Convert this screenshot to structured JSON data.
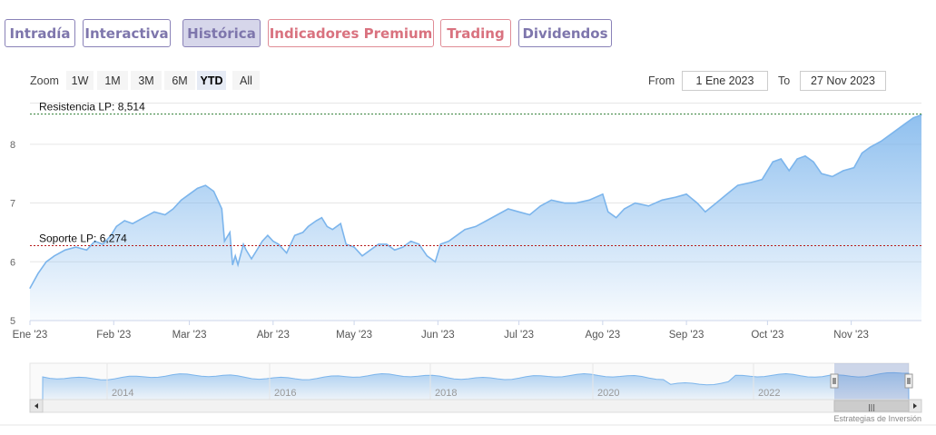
{
  "tabs": [
    {
      "label": "Intradía",
      "style": "purple"
    },
    {
      "label": "Interactiva",
      "style": "purple"
    },
    {
      "label": "Histórica",
      "style": "active"
    },
    {
      "label": "Indicadores Premium",
      "style": "red"
    },
    {
      "label": "Trading",
      "style": "red"
    },
    {
      "label": "Dividendos",
      "style": "purple"
    }
  ],
  "zoom": {
    "label": "Zoom",
    "buttons": [
      "1W",
      "1M",
      "3M",
      "6M",
      "YTD",
      "All"
    ],
    "selected": "YTD"
  },
  "range": {
    "from_label": "From",
    "from_value": "1 Ene 2023",
    "to_label": "To",
    "to_value": "27 Nov 2023"
  },
  "colors": {
    "line": "#7cb5ec",
    "resistance": "#2e7d32",
    "support": "#b71c1c",
    "tab_purple": "#7e76ac",
    "tab_red": "#d9727f"
  },
  "chart_data": {
    "type": "area",
    "title": "",
    "xlabel": "",
    "ylabel": "",
    "ylim": [
      5,
      8.6
    ],
    "xlim": [
      "2023-01-01",
      "2023-11-27"
    ],
    "yticks": [
      "5",
      "6",
      "7",
      "8"
    ],
    "grid": true,
    "legend": "none",
    "xticks": [
      {
        "date": "2023-01-01",
        "label": "Ene '23"
      },
      {
        "date": "2023-02-01",
        "label": "Feb '23"
      },
      {
        "date": "2023-03-01",
        "label": "Mar '23"
      },
      {
        "date": "2023-04-01",
        "label": "Abr '23"
      },
      {
        "date": "2023-05-01",
        "label": "May '23"
      },
      {
        "date": "2023-06-01",
        "label": "Jun '23"
      },
      {
        "date": "2023-07-01",
        "label": "Jul '23"
      },
      {
        "date": "2023-08-01",
        "label": "Ago '23"
      },
      {
        "date": "2023-09-01",
        "label": "Sep '23"
      },
      {
        "date": "2023-10-01",
        "label": "Oct '23"
      },
      {
        "date": "2023-11-01",
        "label": "Nov '23"
      }
    ],
    "plot_lines": [
      {
        "label": "Resistencia LP: 8,514",
        "value": 8.514,
        "style": "resistance"
      },
      {
        "label": "Soporte LP: 6,274",
        "value": 6.274,
        "style": "support"
      }
    ],
    "x": [
      "2023-01-01",
      "2023-01-04",
      "2023-01-07",
      "2023-01-10",
      "2023-01-14",
      "2023-01-18",
      "2023-01-22",
      "2023-01-25",
      "2023-01-28",
      "2023-01-31",
      "2023-02-02",
      "2023-02-05",
      "2023-02-08",
      "2023-02-12",
      "2023-02-16",
      "2023-02-20",
      "2023-02-23",
      "2023-02-26",
      "2023-03-01",
      "2023-03-04",
      "2023-03-07",
      "2023-03-10",
      "2023-03-13",
      "2023-03-14",
      "2023-03-16",
      "2023-03-17",
      "2023-03-18",
      "2023-03-19",
      "2023-03-21",
      "2023-03-22",
      "2023-03-24",
      "2023-03-26",
      "2023-03-28",
      "2023-03-30",
      "2023-04-01",
      "2023-04-03",
      "2023-04-06",
      "2023-04-09",
      "2023-04-12",
      "2023-04-14",
      "2023-04-17",
      "2023-04-19",
      "2023-04-21",
      "2023-04-23",
      "2023-04-26",
      "2023-04-28",
      "2023-05-01",
      "2023-05-04",
      "2023-05-07",
      "2023-05-10",
      "2023-05-13",
      "2023-05-16",
      "2023-05-19",
      "2023-05-22",
      "2023-05-25",
      "2023-05-28",
      "2023-05-31",
      "2023-06-02",
      "2023-06-05",
      "2023-06-08",
      "2023-06-11",
      "2023-06-15",
      "2023-06-19",
      "2023-06-23",
      "2023-06-27",
      "2023-07-01",
      "2023-07-05",
      "2023-07-09",
      "2023-07-13",
      "2023-07-18",
      "2023-07-22",
      "2023-07-27",
      "2023-08-01",
      "2023-08-03",
      "2023-08-06",
      "2023-08-09",
      "2023-08-13",
      "2023-08-18",
      "2023-08-23",
      "2023-08-28",
      "2023-09-01",
      "2023-09-05",
      "2023-09-08",
      "2023-09-12",
      "2023-09-16",
      "2023-09-20",
      "2023-09-25",
      "2023-09-29",
      "2023-10-03",
      "2023-10-06",
      "2023-10-09",
      "2023-10-12",
      "2023-10-15",
      "2023-10-18",
      "2023-10-21",
      "2023-10-25",
      "2023-10-29",
      "2023-11-02",
      "2023-11-05",
      "2023-11-08",
      "2023-11-12",
      "2023-11-15",
      "2023-11-18",
      "2023-11-21",
      "2023-11-24",
      "2023-11-27"
    ],
    "values": [
      5.55,
      5.8,
      6.0,
      6.1,
      6.2,
      6.25,
      6.2,
      6.35,
      6.3,
      6.45,
      6.6,
      6.7,
      6.65,
      6.75,
      6.85,
      6.8,
      6.9,
      7.05,
      7.15,
      7.25,
      7.3,
      7.2,
      6.9,
      6.35,
      6.5,
      5.95,
      6.1,
      5.95,
      6.3,
      6.2,
      6.05,
      6.2,
      6.35,
      6.45,
      6.35,
      6.3,
      6.15,
      6.45,
      6.5,
      6.6,
      6.7,
      6.75,
      6.6,
      6.55,
      6.65,
      6.3,
      6.25,
      6.1,
      6.2,
      6.3,
      6.3,
      6.2,
      6.25,
      6.35,
      6.3,
      6.1,
      6.0,
      6.3,
      6.35,
      6.45,
      6.55,
      6.6,
      6.7,
      6.8,
      6.9,
      6.85,
      6.8,
      6.95,
      7.05,
      7.0,
      7.0,
      7.05,
      7.15,
      6.85,
      6.75,
      6.9,
      7.0,
      6.95,
      7.05,
      7.1,
      7.15,
      7.0,
      6.85,
      7.0,
      7.15,
      7.3,
      7.35,
      7.4,
      7.7,
      7.75,
      7.55,
      7.75,
      7.8,
      7.7,
      7.5,
      7.45,
      7.55,
      7.6,
      7.85,
      7.95,
      8.05,
      8.15,
      8.25,
      8.35,
      8.45,
      8.5
    ]
  },
  "navigator": {
    "year_labels": [
      "2014",
      "2016",
      "2018",
      "2020",
      "2022"
    ],
    "scrollbar_grip": "|||"
  },
  "credit": "Estrategias de Inversión"
}
